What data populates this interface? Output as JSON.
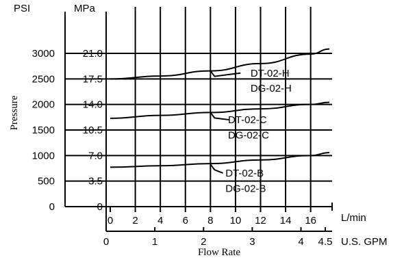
{
  "chart_data": {
    "type": "line",
    "title": "",
    "ylabel": "Pressure",
    "xlabel": "Flow Rate",
    "y_units": [
      "PSI",
      "MPa"
    ],
    "y_ticks_psi": [
      "3000",
      "2500",
      "2000",
      "1500",
      "1000",
      "500",
      "0"
    ],
    "y_ticks_mpa": [
      "21.0",
      "17.5",
      "14.0",
      "10.5",
      "7.0",
      "3.5",
      "0"
    ],
    "x_unit_lmin": "L/min",
    "x_ticks_lmin": [
      "0",
      "2",
      "4",
      "6",
      "8",
      "10",
      "12",
      "14",
      "16"
    ],
    "x_unit_gpm": "U.S. GPM",
    "x_ticks_gpm": [
      "0",
      "1",
      "2",
      "3",
      "4",
      "4.5"
    ],
    "xlim_lmin": [
      0,
      17.5
    ],
    "ylim_mpa": [
      0,
      21.0
    ],
    "grid": true,
    "series": [
      {
        "name": "DT-02-H / DG-02-H",
        "labels": [
          "DT-02-H",
          "DG-02-H"
        ],
        "x_lmin": [
          0,
          4,
          8,
          12,
          16,
          17.5
        ],
        "y_mpa": [
          17.5,
          17.9,
          18.6,
          19.6,
          20.9,
          21.6
        ]
      },
      {
        "name": "DT-02-C / DG-02-C",
        "labels": [
          "DT-02-C",
          "DG-02-C"
        ],
        "x_lmin": [
          0,
          4,
          8,
          12,
          16,
          17.5
        ],
        "y_mpa": [
          12.1,
          12.5,
          12.9,
          13.4,
          14.0,
          14.3
        ]
      },
      {
        "name": "DT-02-B / DG-02-B",
        "labels": [
          "DT-02-B",
          "DG-02-B"
        ],
        "x_lmin": [
          0,
          4,
          8,
          12,
          16,
          17.5
        ],
        "y_mpa": [
          5.4,
          5.6,
          5.9,
          6.4,
          7.0,
          7.4
        ]
      }
    ]
  }
}
